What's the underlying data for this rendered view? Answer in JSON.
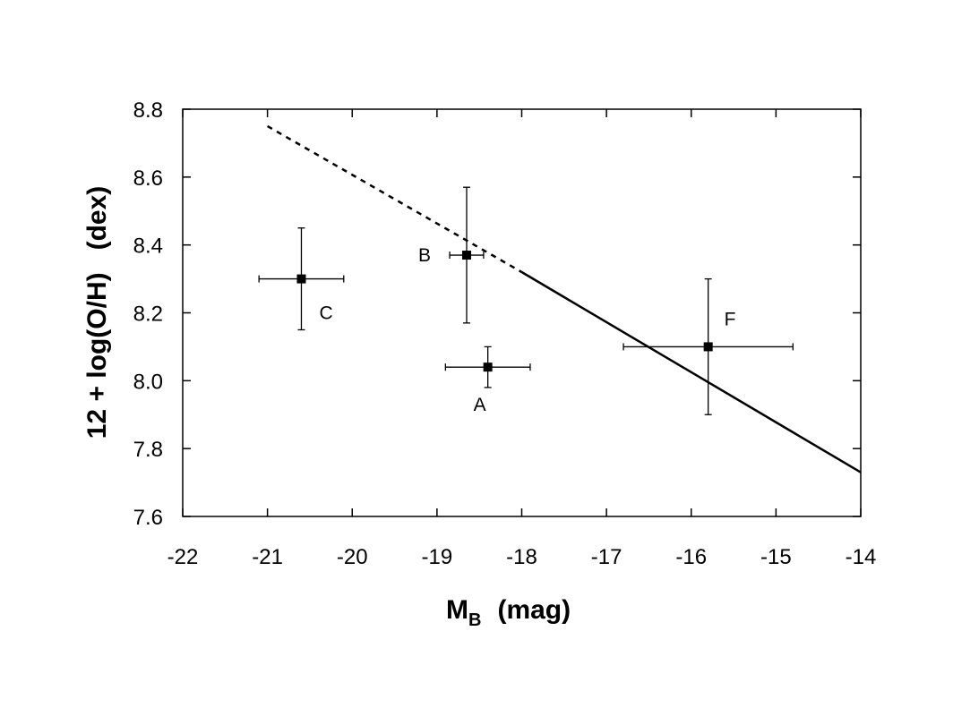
{
  "chart_data": {
    "type": "scatter",
    "xlabel": "M",
    "xlabel_sub": "B",
    "xlabel_unit": "(mag)",
    "ylabel": "12 + log(O/H)   (dex)",
    "xlim": [
      -22,
      -14
    ],
    "ylim": [
      7.6,
      8.8
    ],
    "x_ticks": [
      -22,
      -21,
      -20,
      -19,
      -18,
      -17,
      -16,
      -15,
      -14
    ],
    "x_tick_labels": [
      "-22",
      "-21",
      "-20",
      "-19",
      "-18",
      "-17",
      "-16",
      "-15",
      "-14"
    ],
    "y_ticks": [
      7.6,
      7.8,
      8.0,
      8.2,
      8.4,
      8.6,
      8.8
    ],
    "y_tick_labels": [
      "7.6",
      "7.8",
      "8.0",
      "8.2",
      "8.4",
      "8.6",
      "8.8"
    ],
    "grid": false,
    "points": [
      {
        "label": "A",
        "x": -18.4,
        "y": 8.04,
        "xerr": 0.5,
        "yerr": 0.06
      },
      {
        "label": "B",
        "x": -18.65,
        "y": 8.37,
        "xerr": 0.2,
        "yerr": 0.2
      },
      {
        "label": "C",
        "x": -20.6,
        "y": 8.3,
        "xerr": 0.5,
        "yerr": 0.15
      },
      {
        "label": "F",
        "x": -15.8,
        "y": 8.1,
        "xerr": 1.0,
        "yerr": 0.2
      }
    ],
    "relation": {
      "solid": {
        "x": [
          -18.0,
          -14.0
        ],
        "y": [
          8.32,
          7.73
        ]
      },
      "dashed": {
        "x": [
          -21.0,
          -18.0
        ],
        "y": [
          8.75,
          8.32
        ]
      }
    }
  }
}
